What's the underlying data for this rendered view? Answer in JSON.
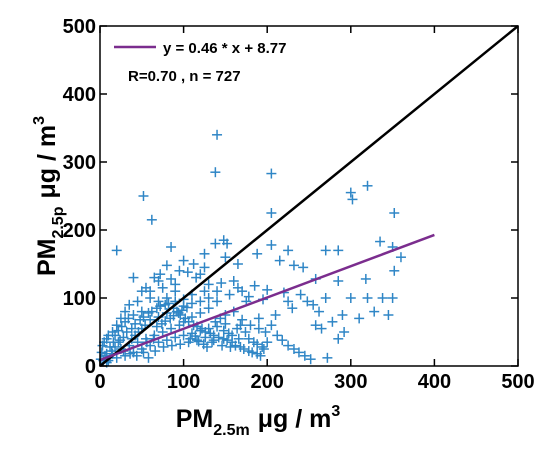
{
  "chart_data": {
    "type": "scatter",
    "title": "",
    "xlabel": {
      "main": "PM",
      "sub": "2.5m",
      "unit": "μg / m",
      "sup": "3"
    },
    "ylabel": {
      "main": "PM",
      "sub": "2.5p",
      "unit": "μg / m",
      "sup": "3"
    },
    "xlim": [
      0,
      500
    ],
    "ylim": [
      0,
      500
    ],
    "x_ticks": [
      0,
      100,
      200,
      300,
      400,
      500
    ],
    "y_ticks": [
      0,
      100,
      200,
      300,
      400,
      500
    ],
    "x_tick_labels": [
      "0",
      "100",
      "200",
      "300",
      "400",
      "500"
    ],
    "y_tick_labels": [
      "0",
      "100",
      "200",
      "300",
      "400",
      "500"
    ],
    "grid": false,
    "legend_position": "top-left",
    "colors": {
      "points": "#2f86c6",
      "fit": "#7b2d8e",
      "one_to_one": "#000000"
    },
    "one_to_one": {
      "x": [
        0,
        500
      ],
      "y": [
        0,
        500
      ]
    },
    "fit": {
      "label": "y = 0.46 * x + 8.77",
      "slope": 0.46,
      "intercept": 8.77,
      "x_range": [
        0,
        400
      ]
    },
    "stats": "R=0.70 , n = 727",
    "points": [
      [
        140,
        340
      ],
      [
        138,
        285
      ],
      [
        205,
        283
      ],
      [
        52,
        250
      ],
      [
        300,
        255
      ],
      [
        320,
        265
      ],
      [
        302,
        245
      ],
      [
        205,
        225
      ],
      [
        20,
        170
      ],
      [
        352,
        225
      ],
      [
        62,
        215
      ],
      [
        148,
        185
      ],
      [
        152,
        180
      ],
      [
        85,
        175
      ],
      [
        138,
        180
      ],
      [
        205,
        178
      ],
      [
        225,
        170
      ],
      [
        270,
        170
      ],
      [
        285,
        170
      ],
      [
        350,
        175
      ],
      [
        335,
        183
      ],
      [
        150,
        160
      ],
      [
        188,
        165
      ],
      [
        165,
        150
      ],
      [
        215,
        155
      ],
      [
        100,
        155
      ],
      [
        232,
        148
      ],
      [
        243,
        145
      ],
      [
        258,
        128
      ],
      [
        352,
        140
      ],
      [
        360,
        160
      ],
      [
        115,
        130
      ],
      [
        120,
        135
      ],
      [
        125,
        145
      ],
      [
        80,
        148
      ],
      [
        70,
        125
      ],
      [
        40,
        130
      ],
      [
        55,
        115
      ],
      [
        90,
        120
      ],
      [
        130,
        120
      ],
      [
        145,
        122
      ],
      [
        160,
        125
      ],
      [
        170,
        110
      ],
      [
        185,
        118
      ],
      [
        200,
        112
      ],
      [
        220,
        108
      ],
      [
        240,
        105
      ],
      [
        285,
        125
      ],
      [
        318,
        128
      ],
      [
        320,
        100
      ],
      [
        350,
        100
      ],
      [
        338,
        100
      ],
      [
        300,
        100
      ],
      [
        270,
        100
      ],
      [
        255,
        90
      ],
      [
        230,
        85
      ],
      [
        210,
        75
      ],
      [
        190,
        70
      ],
      [
        175,
        95
      ],
      [
        155,
        105
      ],
      [
        140,
        95
      ],
      [
        125,
        110
      ],
      [
        110,
        105
      ],
      [
        100,
        98
      ],
      [
        90,
        110
      ],
      [
        80,
        100
      ],
      [
        70,
        95
      ],
      [
        60,
        100
      ],
      [
        50,
        110
      ],
      [
        45,
        95
      ],
      [
        35,
        90
      ],
      [
        30,
        80
      ],
      [
        25,
        70
      ],
      [
        20,
        60
      ],
      [
        15,
        50
      ],
      [
        10,
        45
      ],
      [
        8,
        40
      ],
      [
        5,
        35
      ],
      [
        3,
        30
      ],
      [
        2,
        20
      ],
      [
        1,
        10
      ],
      [
        4,
        8
      ],
      [
        6,
        15
      ],
      [
        8,
        5
      ],
      [
        12,
        12
      ],
      [
        14,
        22
      ],
      [
        18,
        28
      ],
      [
        22,
        35
      ],
      [
        28,
        42
      ],
      [
        32,
        50
      ],
      [
        38,
        55
      ],
      [
        42,
        62
      ],
      [
        48,
        68
      ],
      [
        52,
        72
      ],
      [
        58,
        78
      ],
      [
        62,
        80
      ],
      [
        68,
        85
      ],
      [
        72,
        88
      ],
      [
        78,
        90
      ],
      [
        82,
        92
      ],
      [
        88,
        85
      ],
      [
        92,
        80
      ],
      [
        96,
        75
      ],
      [
        102,
        70
      ],
      [
        106,
        65
      ],
      [
        112,
        60
      ],
      [
        116,
        58
      ],
      [
        122,
        55
      ],
      [
        126,
        50
      ],
      [
        132,
        48
      ],
      [
        136,
        45
      ],
      [
        142,
        42
      ],
      [
        148,
        40
      ],
      [
        152,
        38
      ],
      [
        158,
        35
      ],
      [
        162,
        30
      ],
      [
        168,
        28
      ],
      [
        172,
        25
      ],
      [
        178,
        22
      ],
      [
        182,
        20
      ],
      [
        188,
        18
      ],
      [
        192,
        15
      ],
      [
        198,
        50
      ],
      [
        205,
        60
      ],
      [
        212,
        45
      ],
      [
        218,
        38
      ],
      [
        225,
        30
      ],
      [
        232,
        25
      ],
      [
        238,
        20
      ],
      [
        245,
        15
      ],
      [
        252,
        10
      ],
      [
        258,
        60
      ],
      [
        265,
        55
      ],
      [
        272,
        12
      ],
      [
        278,
        65
      ],
      [
        285,
        40
      ],
      [
        292,
        50
      ],
      [
        150,
        75
      ],
      [
        160,
        80
      ],
      [
        170,
        68
      ],
      [
        180,
        60
      ],
      [
        190,
        55
      ],
      [
        130,
        85
      ],
      [
        120,
        78
      ],
      [
        110,
        72
      ],
      [
        100,
        65
      ],
      [
        95,
        60
      ],
      [
        85,
        55
      ],
      [
        75,
        50
      ],
      [
        65,
        45
      ],
      [
        55,
        40
      ],
      [
        45,
        35
      ],
      [
        35,
        30
      ],
      [
        25,
        25
      ],
      [
        15,
        18
      ],
      [
        10,
        8
      ],
      [
        20,
        12
      ],
      [
        30,
        15
      ],
      [
        40,
        20
      ],
      [
        50,
        25
      ],
      [
        60,
        30
      ],
      [
        70,
        35
      ],
      [
        80,
        38
      ],
      [
        90,
        42
      ],
      [
        100,
        45
      ],
      [
        110,
        48
      ],
      [
        120,
        52
      ],
      [
        130,
        55
      ],
      [
        140,
        58
      ],
      [
        150,
        62
      ],
      [
        40,
        75
      ],
      [
        50,
        80
      ],
      [
        60,
        68
      ],
      [
        70,
        72
      ],
      [
        80,
        78
      ],
      [
        90,
        95
      ],
      [
        100,
        88
      ],
      [
        110,
        92
      ],
      [
        120,
        95
      ],
      [
        130,
        100
      ],
      [
        18,
        45
      ],
      [
        22,
        52
      ],
      [
        26,
        58
      ],
      [
        30,
        65
      ],
      [
        34,
        70
      ],
      [
        38,
        40
      ],
      [
        42,
        45
      ],
      [
        46,
        50
      ],
      [
        50,
        55
      ],
      [
        54,
        60
      ],
      [
        56,
        35
      ],
      [
        64,
        40
      ],
      [
        68,
        58
      ],
      [
        74,
        62
      ],
      [
        78,
        66
      ],
      [
        84,
        70
      ],
      [
        88,
        74
      ],
      [
        94,
        78
      ],
      [
        98,
        82
      ],
      [
        104,
        86
      ],
      [
        108,
        40
      ],
      [
        114,
        44
      ],
      [
        118,
        36
      ],
      [
        124,
        32
      ],
      [
        128,
        28
      ],
      [
        134,
        35
      ],
      [
        138,
        65
      ],
      [
        144,
        70
      ],
      [
        148,
        52
      ],
      [
        154,
        48
      ],
      [
        158,
        45
      ],
      [
        164,
        55
      ],
      [
        168,
        60
      ],
      [
        174,
        50
      ],
      [
        178,
        40
      ],
      [
        184,
        35
      ],
      [
        188,
        32
      ],
      [
        194,
        28
      ],
      [
        196,
        25
      ],
      [
        200,
        35
      ],
      [
        65,
        130
      ],
      [
        72,
        135
      ],
      [
        85,
        128
      ],
      [
        95,
        140
      ],
      [
        105,
        138
      ],
      [
        112,
        150
      ],
      [
        125,
        165
      ],
      [
        60,
        110
      ],
      [
        75,
        115
      ],
      [
        140,
        110
      ],
      [
        165,
        115
      ],
      [
        178,
        102
      ],
      [
        195,
        98
      ],
      [
        225,
        95
      ],
      [
        248,
        95
      ],
      [
        262,
        80
      ],
      [
        290,
        75
      ],
      [
        310,
        70
      ],
      [
        328,
        80
      ],
      [
        345,
        75
      ],
      [
        16,
        35
      ],
      [
        24,
        38
      ],
      [
        12,
        28
      ],
      [
        8,
        18
      ],
      [
        28,
        22
      ],
      [
        36,
        18
      ],
      [
        44,
        15
      ],
      [
        52,
        20
      ],
      [
        58,
        12
      ],
      [
        66,
        22
      ],
      [
        76,
        28
      ],
      [
        86,
        30
      ],
      [
        96,
        32
      ],
      [
        106,
        35
      ],
      [
        116,
        38
      ],
      [
        126,
        42
      ],
      [
        136,
        38
      ],
      [
        146,
        30
      ],
      [
        156,
        28
      ],
      [
        166,
        40
      ]
    ]
  }
}
